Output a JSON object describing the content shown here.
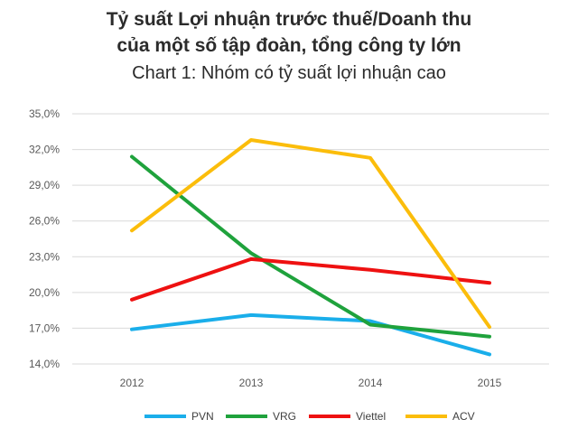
{
  "title": {
    "line1": "Tỷ suất Lợi nhuận trước thuế/Doanh thu",
    "line2": "của một số tập đoàn, tổng công ty lớn",
    "subtitle": "Chart 1: Nhóm có tỷ suất lợi nhuận cao"
  },
  "chart_data": {
    "type": "line",
    "title": "Tỷ suất Lợi nhuận trước thuế/Doanh thu của một số tập đoàn, tổng công ty lớn",
    "subtitle": "Chart 1: Nhóm có tỷ suất lợi nhuận cao",
    "categories": [
      "2012",
      "2013",
      "2014",
      "2015"
    ],
    "yticks": [
      "14,0%",
      "17,0%",
      "20,0%",
      "23,0%",
      "26,0%",
      "29,0%",
      "32,0%",
      "35,0%"
    ],
    "ylim": [
      14,
      35
    ],
    "grid": true,
    "legend_position": "bottom",
    "series": [
      {
        "name": "PVN",
        "color": "#1aaeea",
        "values": [
          16.9,
          18.1,
          17.6,
          14.8
        ]
      },
      {
        "name": "VRG",
        "color": "#1fa23c",
        "values": [
          31.4,
          23.3,
          17.3,
          16.3
        ]
      },
      {
        "name": "Viettel",
        "color": "#ee1111",
        "values": [
          19.4,
          22.8,
          21.9,
          20.8
        ]
      },
      {
        "name": "ACV",
        "color": "#fbbd0b",
        "values": [
          25.2,
          32.8,
          31.3,
          17.1
        ]
      }
    ]
  }
}
